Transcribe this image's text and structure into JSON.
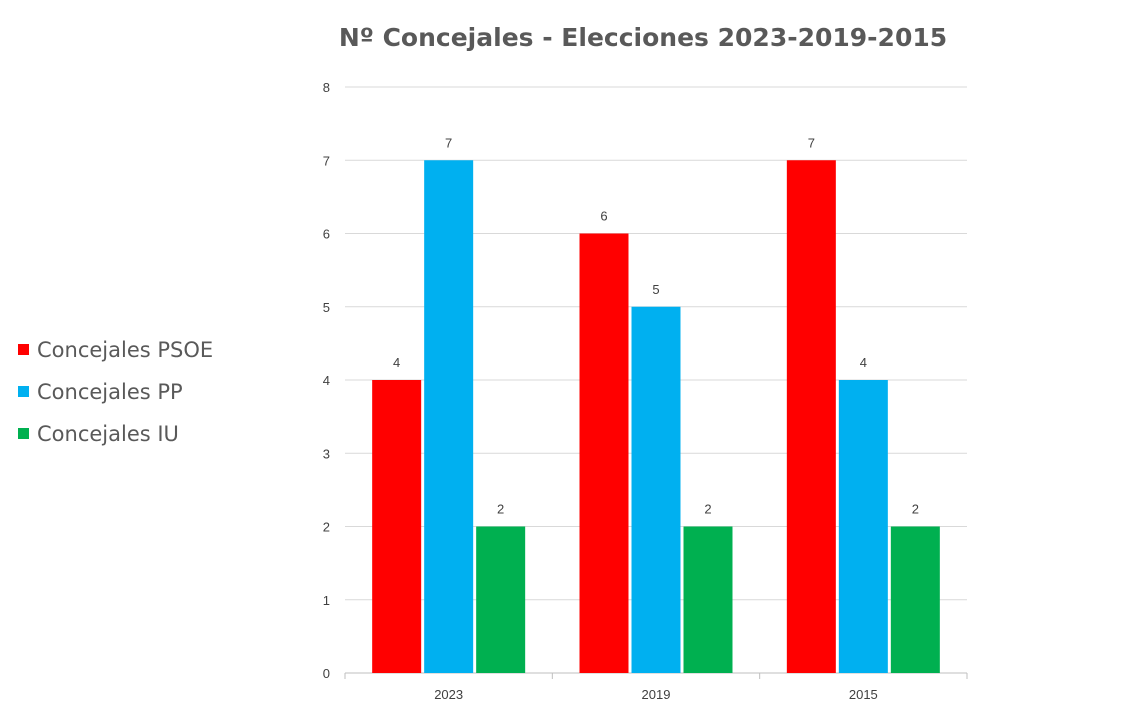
{
  "chart_data": {
    "type": "bar",
    "title": "Nº Concejales - Elecciones 2023-2019-2015",
    "xlabel": "",
    "ylabel": "",
    "categories": [
      "2023",
      "2019",
      "2015"
    ],
    "series": [
      {
        "name": "Concejales PSOE",
        "color": "#ff0000",
        "values": [
          4,
          6,
          7
        ]
      },
      {
        "name": "Concejales PP",
        "color": "#00b0f0",
        "values": [
          7,
          5,
          4
        ]
      },
      {
        "name": "Concejales IU",
        "color": "#00b050",
        "values": [
          2,
          2,
          2
        ]
      }
    ],
    "ylim": [
      0,
      8
    ],
    "yticks": [
      "0",
      "1",
      "2",
      "3",
      "4",
      "5",
      "6",
      "7",
      "8"
    ],
    "grid": true,
    "legend_position": "left",
    "data_labels": true
  }
}
